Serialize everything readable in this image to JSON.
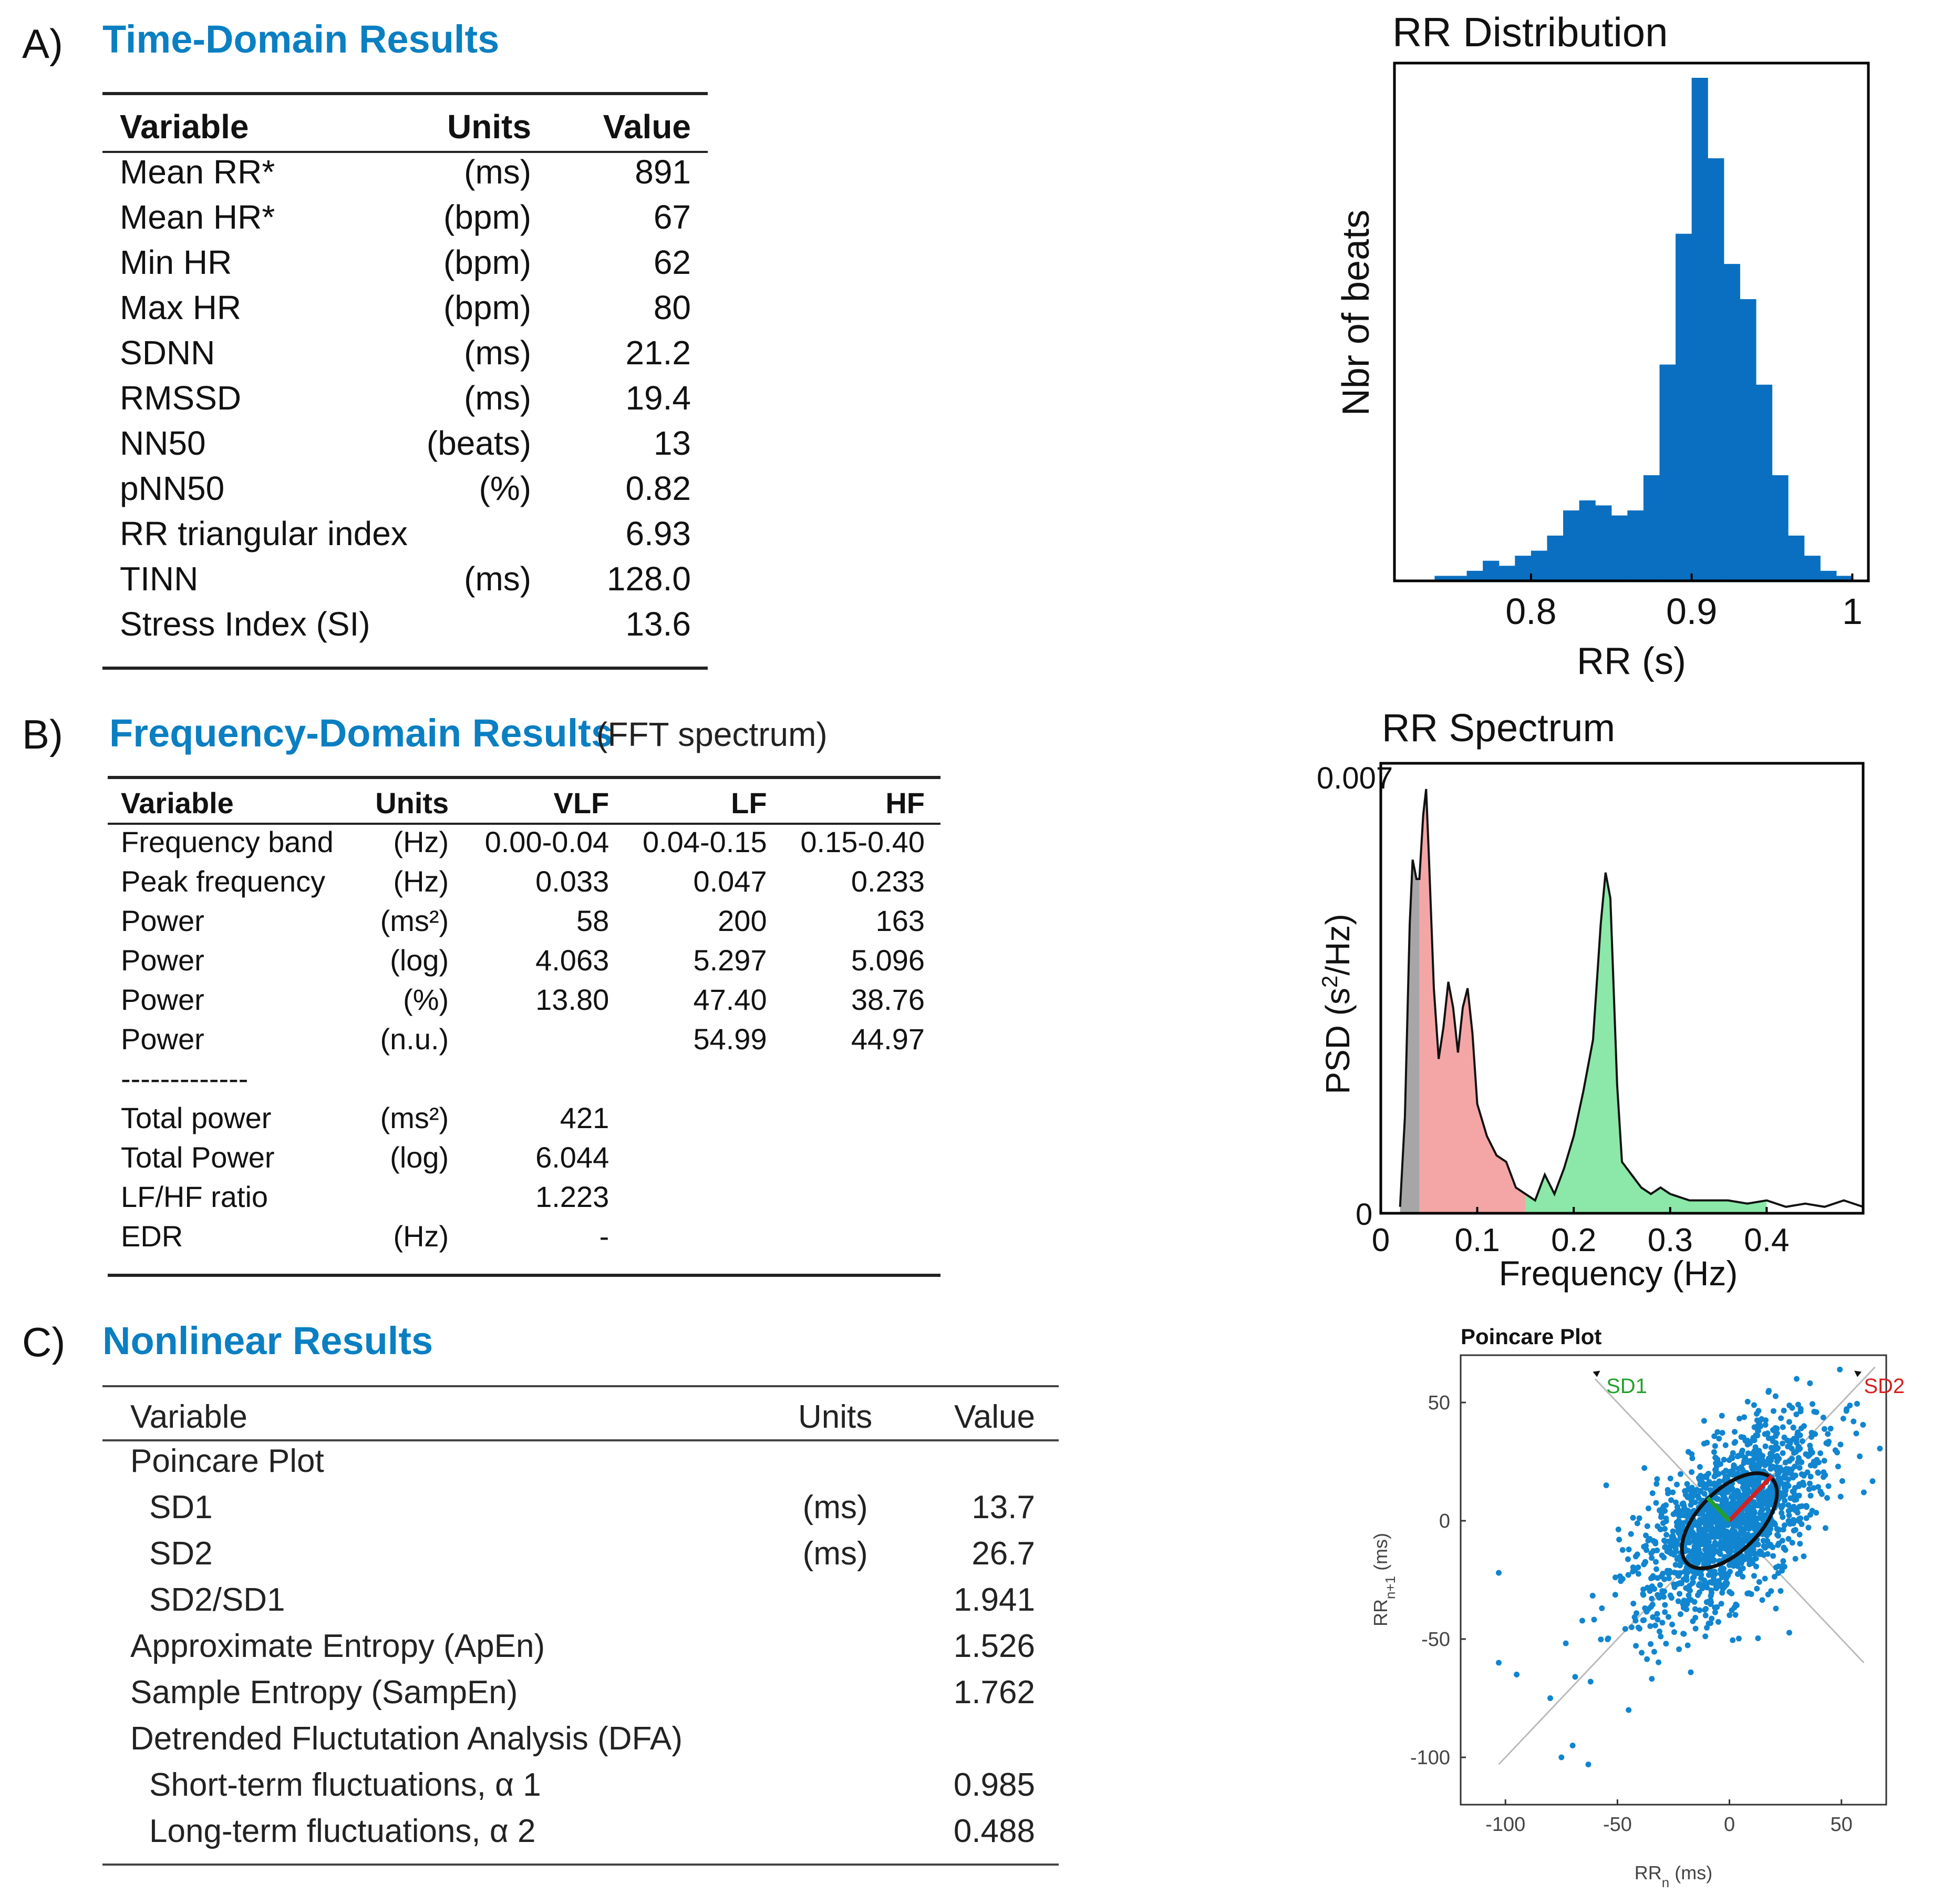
{
  "sectionA": {
    "letter": "A)",
    "title": "Time-Domain Results",
    "headers": [
      "Variable",
      "Units",
      "Value"
    ],
    "rows": [
      [
        "Mean RR*",
        "(ms)",
        "891"
      ],
      [
        "Mean HR*",
        "(bpm)",
        "67"
      ],
      [
        "Min HR",
        "(bpm)",
        "62"
      ],
      [
        "Max HR",
        "(bpm)",
        "80"
      ],
      [
        "SDNN",
        "(ms)",
        "21.2"
      ],
      [
        "RMSSD",
        "(ms)",
        "19.4"
      ],
      [
        "NN50",
        "(beats)",
        "13"
      ],
      [
        "pNN50",
        "(%)",
        "0.82"
      ],
      [
        "RR triangular index",
        "",
        "6.93"
      ],
      [
        "TINN",
        "(ms)",
        "128.0"
      ],
      [
        "Stress Index (SI)",
        "",
        "13.6"
      ]
    ]
  },
  "sectionB": {
    "letter": "B)",
    "title": "Frequency-Domain Results",
    "subtitle": "(FFT spectrum)",
    "headers": [
      "Variable",
      "Units",
      "VLF",
      "LF",
      "HF"
    ],
    "rows": [
      [
        "Frequency band",
        "(Hz)",
        "0.00-0.04",
        "0.04-0.15",
        "0.15-0.40"
      ],
      [
        "Peak frequency",
        "(Hz)",
        "0.033",
        "0.047",
        "0.233"
      ],
      [
        "Power",
        "(ms²)",
        "58",
        "200",
        "163"
      ],
      [
        "Power",
        "(log)",
        "4.063",
        "5.297",
        "5.096"
      ],
      [
        "Power",
        "(%)",
        "13.80",
        "47.40",
        "38.76"
      ],
      [
        "Power",
        "(n.u.)",
        "",
        "54.99",
        "44.97"
      ],
      [
        "-------------",
        "",
        "",
        "",
        ""
      ],
      [
        "Total power",
        "(ms²)",
        "421",
        "",
        ""
      ],
      [
        "Total Power",
        "(log)",
        "6.044",
        "",
        ""
      ],
      [
        "LF/HF ratio",
        "",
        "1.223",
        "",
        ""
      ],
      [
        "EDR",
        "(Hz)",
        "-",
        "",
        ""
      ]
    ]
  },
  "sectionC": {
    "letter": "C)",
    "title": "Nonlinear Results",
    "headers": [
      "Variable",
      "Units",
      "Value"
    ],
    "rows": [
      [
        "Poincare Plot",
        "",
        ""
      ],
      [
        "SD1",
        "(ms)",
        "13.7"
      ],
      [
        "SD2",
        "(ms)",
        "26.7"
      ],
      [
        "SD2/SD1",
        "",
        "1.941"
      ],
      [
        "Approximate Entropy (ApEn)",
        "",
        "1.526"
      ],
      [
        "Sample Entropy (SampEn)",
        "",
        "1.762"
      ],
      [
        "Detrended Fluctutation Analysis (DFA)",
        "",
        ""
      ],
      [
        "Short-term fluctuations, α 1",
        "",
        "0.985"
      ],
      [
        "Long-term fluctuations, α 2",
        "",
        "0.488"
      ]
    ],
    "indent": [
      1,
      2,
      2,
      2,
      1,
      1,
      1,
      2,
      2
    ]
  },
  "chart_data": [
    {
      "type": "bar",
      "title": "RR Distribution",
      "xlabel": "RR (s)",
      "ylabel": "Nbr of beats",
      "xlim": [
        0.715,
        1.01
      ],
      "ylim": [
        0,
        100
      ],
      "xticks": [
        0.8,
        0.9,
        1
      ],
      "xtick_labels": [
        "0.8",
        "0.9",
        "1"
      ],
      "bin_start": 0.74,
      "bin_width": 0.01,
      "values": [
        1,
        1,
        2,
        4,
        3,
        5,
        6,
        9,
        14,
        16,
        15,
        13,
        14,
        21,
        43,
        69,
        100,
        84,
        63,
        56,
        39,
        21,
        9,
        5,
        2,
        1
      ]
    },
    {
      "type": "area",
      "title": "RR Spectrum",
      "xlabel": "Frequency (Hz)",
      "ylabel": "PSD (s²/Hz)",
      "xlim": [
        0,
        0.5
      ],
      "ylim": [
        0,
        0.007
      ],
      "ytick_labels": [
        "0",
        "0.007"
      ],
      "xticks": [
        0,
        0.1,
        0.2,
        0.3,
        0.4
      ],
      "xtick_labels": [
        "0",
        "0.1",
        "0.2",
        "0.3",
        "0.4"
      ],
      "bands": [
        {
          "name": "VLF",
          "range": [
            0,
            0.04
          ],
          "color": "#a6a6a6"
        },
        {
          "name": "LF",
          "range": [
            0.04,
            0.15
          ],
          "color": "#f4a6a6"
        },
        {
          "name": "HF",
          "range": [
            0.15,
            0.4
          ],
          "color": "#8be8a8"
        }
      ],
      "x": [
        0.02,
        0.025,
        0.03,
        0.033,
        0.037,
        0.04,
        0.044,
        0.047,
        0.05,
        0.055,
        0.06,
        0.065,
        0.07,
        0.075,
        0.08,
        0.085,
        0.09,
        0.095,
        0.1,
        0.11,
        0.12,
        0.13,
        0.14,
        0.15,
        0.16,
        0.17,
        0.18,
        0.19,
        0.2,
        0.21,
        0.22,
        0.228,
        0.233,
        0.238,
        0.245,
        0.25,
        0.26,
        0.27,
        0.28,
        0.29,
        0.3,
        0.32,
        0.34,
        0.36,
        0.38,
        0.4,
        0.42,
        0.44,
        0.46,
        0.48,
        0.5
      ],
      "y": [
        0.0001,
        0.0015,
        0.0045,
        0.0055,
        0.0052,
        0.0052,
        0.0062,
        0.0066,
        0.0055,
        0.0035,
        0.0024,
        0.0029,
        0.0036,
        0.0032,
        0.0025,
        0.0032,
        0.0035,
        0.0028,
        0.0017,
        0.0012,
        0.0009,
        0.0008,
        0.0004,
        0.0003,
        0.0002,
        0.0006,
        0.0003,
        0.0007,
        0.0012,
        0.0019,
        0.0027,
        0.0045,
        0.0053,
        0.0049,
        0.002,
        0.0008,
        0.0006,
        0.0004,
        0.0003,
        0.0004,
        0.0003,
        0.0002,
        0.0002,
        0.0002,
        0.00015,
        0.0002,
        0.0001,
        0.00015,
        0.0001,
        0.0002,
        0.0001
      ]
    },
    {
      "type": "scatter",
      "title": "Poincare Plot",
      "xlabel": "RRn (ms)",
      "ylabel": "RRn+1 (ms)",
      "xlim": [
        -120,
        70
      ],
      "ylim": [
        -120,
        70
      ],
      "xticks": [
        -100,
        -50,
        0,
        50
      ],
      "yticks": [
        -100,
        -50,
        0,
        50
      ],
      "tick_labels": [
        "-100",
        "-50",
        "0",
        "50"
      ],
      "sd1": 13.7,
      "sd2": 26.7,
      "sd1_label": "SD1",
      "sd2_label": "SD2",
      "cloud_center": [
        0,
        0
      ],
      "n_points": 1600,
      "outliers": [
        [
          -103,
          -22
        ],
        [
          -103,
          -60
        ],
        [
          -63,
          -103
        ],
        [
          -75,
          -100
        ],
        [
          -55,
          15
        ],
        [
          -80,
          -75
        ],
        [
          -62,
          -68
        ],
        [
          -45,
          -80
        ],
        [
          60,
          12
        ],
        [
          30,
          60
        ],
        [
          -70,
          -95
        ],
        [
          -95,
          -65
        ]
      ]
    }
  ]
}
